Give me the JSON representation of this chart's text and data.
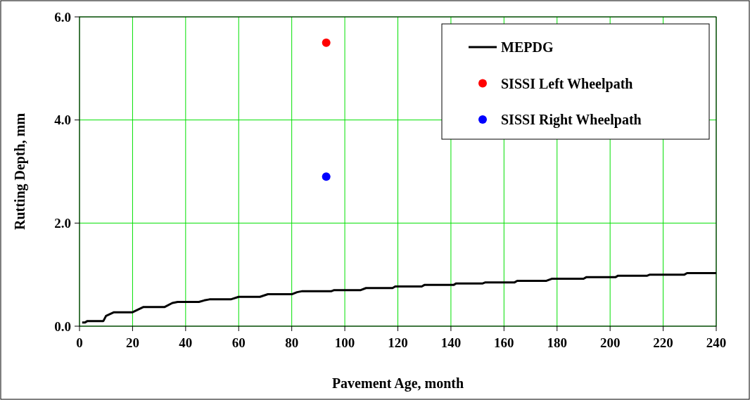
{
  "chart_data": {
    "type": "line",
    "xlabel": "Pavement Age, month",
    "ylabel": "Rutting Depth, mm",
    "xlim": [
      0,
      240
    ],
    "xticks": [
      0,
      20,
      40,
      60,
      80,
      100,
      120,
      140,
      160,
      180,
      200,
      220,
      240
    ],
    "ylim": [
      0,
      6
    ],
    "yticks": [
      {
        "value": 0,
        "label": "0.0"
      },
      {
        "value": 2,
        "label": "2.0"
      },
      {
        "value": 4,
        "label": "4.0"
      },
      {
        "value": 6,
        "label": "6.0"
      }
    ],
    "grid": true,
    "legend": "top right",
    "series": [
      {
        "name": "MEPDG",
        "color": "#000000",
        "marker": "none",
        "x": [
          1,
          2,
          3,
          9,
          10,
          13,
          20,
          24,
          32,
          35,
          37,
          45,
          47,
          49,
          57,
          60,
          68,
          71,
          80,
          82,
          84,
          95,
          96,
          106,
          108,
          118,
          119,
          129,
          130,
          141,
          142,
          152,
          153,
          164,
          165,
          176,
          178,
          190,
          191,
          202,
          203,
          214,
          215,
          228,
          229,
          240
        ],
        "values": [
          0.07,
          0.07,
          0.1,
          0.1,
          0.2,
          0.27,
          0.27,
          0.37,
          0.37,
          0.45,
          0.47,
          0.47,
          0.5,
          0.52,
          0.52,
          0.57,
          0.57,
          0.62,
          0.62,
          0.66,
          0.68,
          0.68,
          0.7,
          0.7,
          0.74,
          0.74,
          0.77,
          0.77,
          0.8,
          0.8,
          0.83,
          0.83,
          0.85,
          0.85,
          0.88,
          0.88,
          0.92,
          0.92,
          0.95,
          0.95,
          0.98,
          0.98,
          1.0,
          1.0,
          1.03,
          1.03
        ]
      },
      {
        "name": "SISSI Left Wheelpath",
        "type": "scatter",
        "color": "#ff0000",
        "marker": "circle",
        "x": [
          93
        ],
        "values": [
          5.5
        ]
      },
      {
        "name": "SISSI Right Wheelpath",
        "type": "scatter",
        "color": "#0000ff",
        "marker": "circle",
        "x": [
          93
        ],
        "values": [
          2.9
        ]
      }
    ]
  }
}
